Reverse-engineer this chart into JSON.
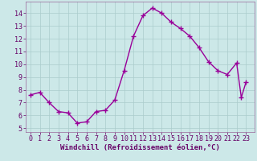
{
  "x": [
    0,
    1,
    2,
    3,
    4,
    5,
    6,
    7,
    8,
    9,
    10,
    11,
    12,
    13,
    14,
    15,
    16,
    17,
    18,
    19,
    20,
    21,
    22,
    22.5,
    23
  ],
  "y": [
    7.6,
    7.8,
    7.0,
    6.3,
    6.2,
    5.4,
    5.5,
    6.3,
    6.4,
    7.2,
    9.5,
    12.2,
    13.8,
    14.4,
    14.0,
    13.3,
    12.8,
    12.2,
    11.3,
    10.2,
    9.5,
    9.2,
    10.1,
    7.4,
    8.6
  ],
  "line_color": "#990099",
  "marker": "+",
  "marker_size": 4,
  "marker_linewidth": 1.0,
  "line_width": 1.0,
  "bg_color": "#cce8e8",
  "grid_color": "#aacccc",
  "xlabel": "Windchill (Refroidissement éolien,°C)",
  "xlabel_fontsize": 6.5,
  "ylabel_ticks": [
    5,
    6,
    7,
    8,
    9,
    10,
    11,
    12,
    13,
    14
  ],
  "xlim": [
    -0.5,
    23.9
  ],
  "ylim": [
    4.7,
    14.9
  ],
  "tick_fontsize": 6,
  "tick_color": "#660066",
  "label_color": "#660066",
  "spine_color": "#996699"
}
